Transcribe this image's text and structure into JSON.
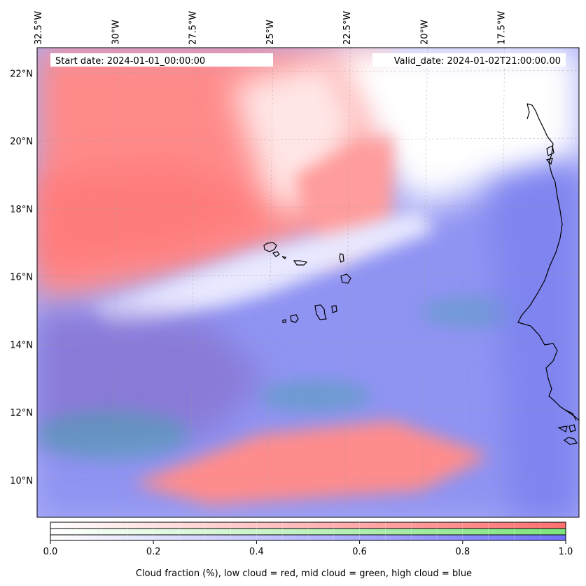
{
  "map": {
    "start_date": "Start date: 2024-01-01_00:00:00",
    "valid_date": "Valid_date: 2024-01-02T21:00:00.00",
    "lon_labels": [
      {
        "lon": -32.5,
        "text": "32.5°W"
      },
      {
        "lon": -30.0,
        "text": "30°W"
      },
      {
        "lon": -27.5,
        "text": "27.5°W"
      },
      {
        "lon": -25.0,
        "text": "25°W"
      },
      {
        "lon": -22.5,
        "text": "22.5°W"
      },
      {
        "lon": -20.0,
        "text": "20°W"
      },
      {
        "lon": -17.5,
        "text": "17.5°W"
      }
    ],
    "lat_labels": [
      {
        "lat": 10,
        "text": "10°N"
      },
      {
        "lat": 12,
        "text": "12°N"
      },
      {
        "lat": 14,
        "text": "14°N"
      },
      {
        "lat": 16,
        "text": "16°N"
      },
      {
        "lat": 18,
        "text": "18°N"
      },
      {
        "lat": 20,
        "text": "20°N"
      },
      {
        "lat": 22,
        "text": "22°N"
      }
    ],
    "extent": {
      "lon_min": -32.55,
      "lon_max": -15.0,
      "lat_min": 8.9,
      "lat_max": 22.75
    },
    "colors": {
      "low_cloud": "#ff7070",
      "mid_cloud": "#7de37d",
      "high_cloud": "#7070ff",
      "coastline": "#000000"
    }
  },
  "colorbar": {
    "ticks": [
      "0.0",
      "0.2",
      "0.4",
      "0.6",
      "0.8",
      "1.0"
    ],
    "caption": "Cloud fraction (%), low cloud = red, mid cloud = green, high cloud = blue",
    "range": [
      0.0,
      1.0
    ]
  }
}
